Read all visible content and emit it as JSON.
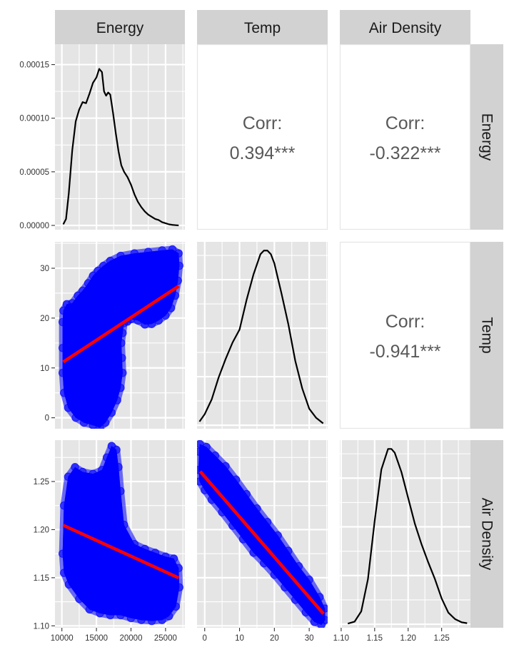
{
  "chart_data": {
    "type": "scatter",
    "plot_kind": "pairs-matrix",
    "variables": [
      "Energy",
      "Temp",
      "Air Density"
    ],
    "colors": {
      "panel_bg": "#e5e5e5",
      "grid": "#ffffff",
      "strip_bg": "#d2d2d2",
      "strip_text": "#1a1a1a",
      "density_line": "#000000",
      "points": "#0000ff",
      "fit_line": "#ff0000",
      "corr_text": "#595959",
      "tick_text": "#333333"
    },
    "axes": {
      "Energy": {
        "range": [
          9000,
          27800
        ],
        "ticks": [
          10000,
          15000,
          20000,
          25000
        ],
        "tick_labels": [
          "10000",
          "15000",
          "20000",
          "25000"
        ]
      },
      "Temp": {
        "range": [
          -2.2,
          35.3
        ],
        "ticks": [
          0,
          10,
          20,
          30
        ],
        "tick_labels": [
          "0",
          "10",
          "20",
          "30"
        ]
      },
      "Air Density": {
        "range": [
          1.098,
          1.293
        ],
        "ticks": [
          1.1,
          1.15,
          1.2,
          1.25
        ],
        "tick_labels": [
          "1.10",
          "1.15",
          "1.20",
          "1.25"
        ]
      }
    },
    "density_y_axis": {
      "range": [
        -4e-06,
        0.000169
      ],
      "ticks": [
        0,
        5e-05,
        0.0001,
        0.00015
      ],
      "tick_labels": [
        "0.00000",
        "0.00005",
        "0.00010",
        "0.00015"
      ]
    },
    "densities": {
      "Energy": {
        "x": [
          10200,
          10600,
          11000,
          11500,
          12000,
          12500,
          13000,
          13500,
          14000,
          14500,
          15000,
          15400,
          15800,
          16100,
          16400,
          16700,
          17000,
          17400,
          17800,
          18200,
          18600,
          19000,
          19500,
          20000,
          20500,
          21000,
          21500,
          22000,
          22500,
          23000,
          23500,
          24000,
          24500,
          25000,
          25500,
          26000,
          26500,
          26900
        ],
        "y": [
          1e-06,
          6e-06,
          3e-05,
          7e-05,
          9.7e-05,
          0.000108,
          0.000115,
          0.000114,
          0.000123,
          0.000133,
          0.000138,
          0.000146,
          0.000143,
          0.000125,
          0.000121,
          0.000124,
          0.000122,
          0.000105,
          8.6e-05,
          6.9e-05,
          5.6e-05,
          5e-05,
          4.5e-05,
          3.8e-05,
          2.9e-05,
          2.2e-05,
          1.7e-05,
          1.3e-05,
          1e-05,
          8e-06,
          6e-06,
          5e-06,
          3e-06,
          2e-06,
          1e-06,
          5e-07,
          2e-07,
          0
        ]
      },
      "Temp": {
        "x": [
          -1.5,
          0,
          2,
          4,
          6,
          8,
          10,
          12,
          14,
          16,
          17,
          18,
          19,
          20,
          22,
          24,
          26,
          28,
          30,
          32,
          34
        ],
        "y": [
          0.002,
          0.006,
          0.014,
          0.026,
          0.036,
          0.045,
          0.052,
          0.068,
          0.082,
          0.093,
          0.095,
          0.095,
          0.093,
          0.088,
          0.072,
          0.055,
          0.035,
          0.02,
          0.009,
          0.004,
          0.001
        ]
      },
      "Air Density": {
        "x": [
          1.11,
          1.12,
          1.13,
          1.14,
          1.15,
          1.16,
          1.17,
          1.175,
          1.18,
          1.19,
          1.2,
          1.21,
          1.22,
          1.23,
          1.24,
          1.25,
          1.26,
          1.27,
          1.28,
          1.288
        ],
        "y": [
          0.05,
          0.2,
          1.0,
          3.5,
          8.0,
          12.0,
          13.6,
          13.6,
          13.3,
          11.8,
          9.8,
          7.8,
          6.2,
          4.8,
          3.5,
          2.0,
          0.9,
          0.4,
          0.15,
          0.08
        ]
      }
    },
    "correlations": [
      {
        "row": "Energy",
        "col": "Temp",
        "label": "Corr:",
        "value": "0.394***"
      },
      {
        "row": "Energy",
        "col": "Air Density",
        "label": "Corr:",
        "value": "-0.322***"
      },
      {
        "row": "Temp",
        "col": "Air Density",
        "label": "Corr:",
        "value": "-0.941***"
      }
    ],
    "scatter_panels": [
      {
        "x_var": "Energy",
        "y_var": "Temp",
        "cloud_outline": [
          [
            10100,
            19.2
          ],
          [
            10200,
            21.5
          ],
          [
            10700,
            22.8
          ],
          [
            11500,
            23.0
          ],
          [
            12300,
            24.5
          ],
          [
            13000,
            25.5
          ],
          [
            13800,
            27.0
          ],
          [
            14500,
            28.5
          ],
          [
            15200,
            29.5
          ],
          [
            16000,
            30.5
          ],
          [
            17000,
            31.5
          ],
          [
            18500,
            32.5
          ],
          [
            20500,
            33.0
          ],
          [
            22500,
            33.3
          ],
          [
            24500,
            33.6
          ],
          [
            26000,
            33.8
          ],
          [
            26900,
            33.0
          ],
          [
            27000,
            30.5
          ],
          [
            26800,
            27.5
          ],
          [
            26400,
            24.5
          ],
          [
            25800,
            22.0
          ],
          [
            25000,
            20.5
          ],
          [
            24000,
            19.5
          ],
          [
            23000,
            18.8
          ],
          [
            22000,
            18.7
          ],
          [
            21000,
            19.5
          ],
          [
            20000,
            19.8
          ],
          [
            19500,
            19.3
          ],
          [
            19000,
            19.0
          ],
          [
            18800,
            17.0
          ],
          [
            18600,
            15.0
          ],
          [
            18700,
            12.0
          ],
          [
            18800,
            9.0
          ],
          [
            18500,
            6.0
          ],
          [
            18000,
            3.5
          ],
          [
            17200,
            1.0
          ],
          [
            16300,
            -1.0
          ],
          [
            15500,
            -2.0
          ],
          [
            14500,
            -1.5
          ],
          [
            13200,
            -1.0
          ],
          [
            12000,
            0.0
          ],
          [
            10900,
            2.0
          ],
          [
            10300,
            5.0
          ],
          [
            10100,
            9.0
          ],
          [
            10100,
            14.0
          ]
        ],
        "fit": {
          "x": [
            10200,
            26900
          ],
          "y": [
            11.2,
            26.4
          ]
        }
      },
      {
        "x_var": "Energy",
        "y_var": "Air Density",
        "cloud_outline": [
          [
            10100,
            1.175
          ],
          [
            10300,
            1.225
          ],
          [
            10900,
            1.255
          ],
          [
            11900,
            1.265
          ],
          [
            13000,
            1.26
          ],
          [
            14500,
            1.258
          ],
          [
            15800,
            1.262
          ],
          [
            16500,
            1.275
          ],
          [
            17200,
            1.287
          ],
          [
            17900,
            1.283
          ],
          [
            18200,
            1.265
          ],
          [
            18500,
            1.24
          ],
          [
            19000,
            1.205
          ],
          [
            20500,
            1.185
          ],
          [
            22000,
            1.18
          ],
          [
            23500,
            1.176
          ],
          [
            25000,
            1.172
          ],
          [
            26200,
            1.17
          ],
          [
            26900,
            1.16
          ],
          [
            27000,
            1.14
          ],
          [
            26500,
            1.12
          ],
          [
            25500,
            1.11
          ],
          [
            24500,
            1.106
          ],
          [
            23000,
            1.105
          ],
          [
            21500,
            1.106
          ],
          [
            20000,
            1.108
          ],
          [
            18500,
            1.111
          ],
          [
            17000,
            1.111
          ],
          [
            15500,
            1.113
          ],
          [
            14000,
            1.117
          ],
          [
            12500,
            1.128
          ],
          [
            11000,
            1.143
          ],
          [
            10300,
            1.155
          ]
        ],
        "fit": {
          "x": [
            10200,
            26900
          ],
          "y": [
            1.2045,
            1.1498
          ]
        }
      },
      {
        "x_var": "Temp",
        "y_var": "Air Density",
        "cloud_outline": [
          [
            -1.6,
            1.281
          ],
          [
            -1.4,
            1.289
          ],
          [
            0.5,
            1.286
          ],
          [
            3.0,
            1.277
          ],
          [
            6.0,
            1.266
          ],
          [
            9.0,
            1.252
          ],
          [
            12.0,
            1.237
          ],
          [
            15.0,
            1.222
          ],
          [
            18.0,
            1.208
          ],
          [
            21.0,
            1.194
          ],
          [
            24.0,
            1.178
          ],
          [
            27.0,
            1.162
          ],
          [
            30.0,
            1.148
          ],
          [
            33.0,
            1.13
          ],
          [
            34.5,
            1.118
          ],
          [
            34.6,
            1.106
          ],
          [
            33.5,
            1.101
          ],
          [
            31.5,
            1.104
          ],
          [
            29.0,
            1.114
          ],
          [
            26.0,
            1.127
          ],
          [
            23.0,
            1.14
          ],
          [
            20.0,
            1.153
          ],
          [
            17.0,
            1.165
          ],
          [
            14.0,
            1.176
          ],
          [
            11.0,
            1.19
          ],
          [
            8.0,
            1.204
          ],
          [
            5.0,
            1.218
          ],
          [
            2.0,
            1.231
          ],
          [
            0.0,
            1.241
          ],
          [
            -1.5,
            1.25
          ],
          [
            -1.8,
            1.262
          ]
        ],
        "fit": {
          "x": [
            -1.3,
            34.1
          ],
          "y": [
            1.2605,
            1.1125
          ]
        }
      }
    ]
  }
}
